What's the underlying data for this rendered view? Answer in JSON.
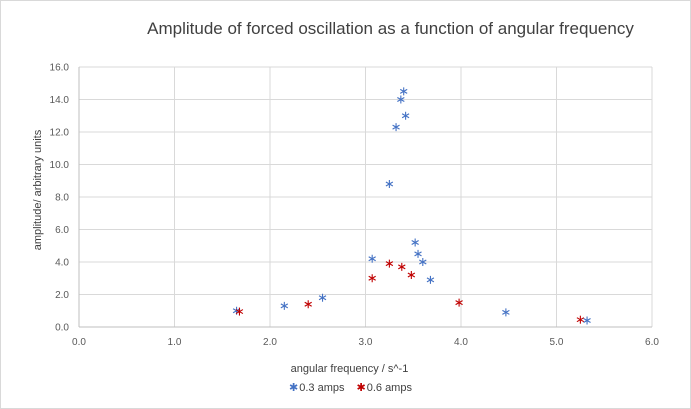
{
  "chart_data": {
    "type": "scatter",
    "title": "Amplitude of forced oscillation as a function of angular frequency",
    "xlabel": "angular frequency / s^-1",
    "ylabel": "amplitude/ arbitrary units",
    "xlim": [
      0,
      6
    ],
    "ylim": [
      0,
      16
    ],
    "xticks": [
      "0.0",
      "1.0",
      "2.0",
      "3.0",
      "4.0",
      "5.0",
      "6.0"
    ],
    "yticks": [
      "0.0",
      "2.0",
      "4.0",
      "6.0",
      "8.0",
      "10.0",
      "12.0",
      "14.0",
      "16.0"
    ],
    "grid": true,
    "legend_position": "bottom",
    "marker": "asterisk",
    "series": [
      {
        "name": "0.3 amps",
        "color": "#4472c4",
        "points": [
          [
            1.65,
            1.0
          ],
          [
            2.15,
            1.3
          ],
          [
            2.55,
            1.8
          ],
          [
            3.07,
            4.2
          ],
          [
            3.25,
            8.8
          ],
          [
            3.32,
            12.3
          ],
          [
            3.37,
            14.0
          ],
          [
            3.4,
            14.5
          ],
          [
            3.42,
            13.0
          ],
          [
            3.52,
            5.2
          ],
          [
            3.55,
            4.5
          ],
          [
            3.6,
            4.0
          ],
          [
            3.68,
            2.9
          ],
          [
            4.47,
            0.9
          ],
          [
            5.32,
            0.4
          ]
        ]
      },
      {
        "name": "0.6 amps",
        "color": "#c00000",
        "points": [
          [
            1.68,
            0.95
          ],
          [
            2.4,
            1.4
          ],
          [
            3.07,
            3.0
          ],
          [
            3.25,
            3.9
          ],
          [
            3.38,
            3.7
          ],
          [
            3.48,
            3.2
          ],
          [
            3.98,
            1.5
          ],
          [
            5.25,
            0.45
          ]
        ]
      }
    ]
  }
}
